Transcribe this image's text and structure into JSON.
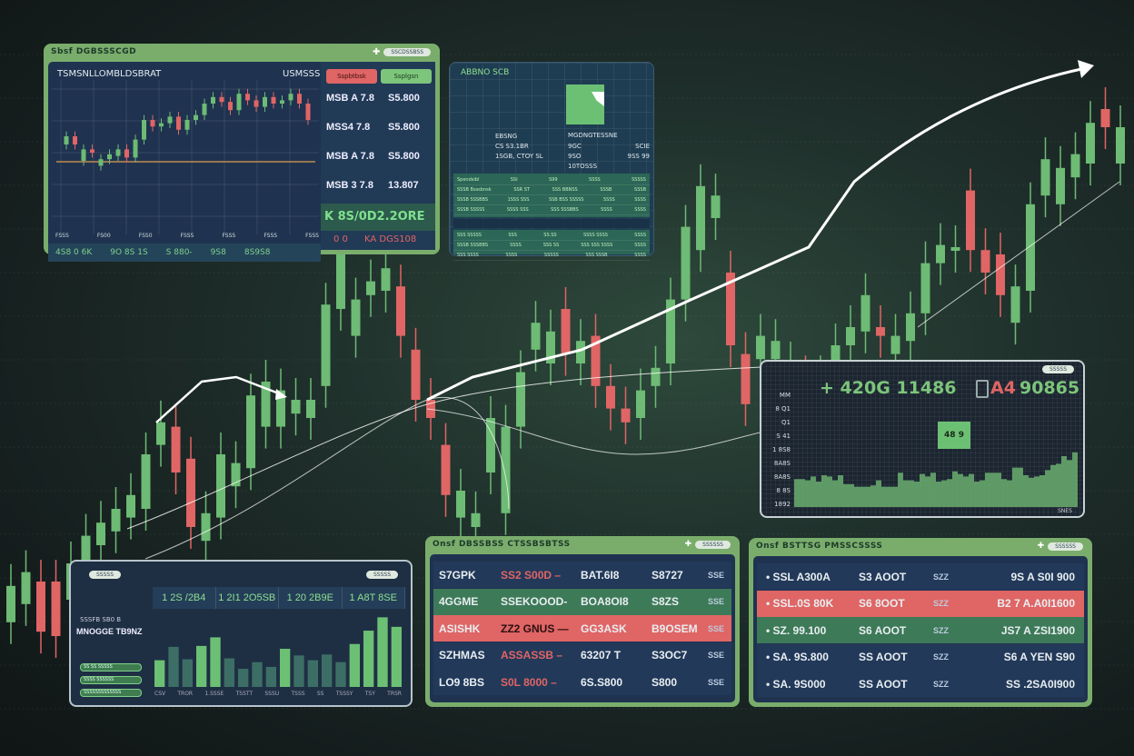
{
  "colors": {
    "up": "#6dbb74",
    "down": "#e06565",
    "panel": "#1f3350",
    "frame": "#7aad6c",
    "arrow": "#ffffff"
  },
  "market_chart": {
    "type": "candlestick",
    "candles": [
      [
        14.4,
        19.4
      ],
      [
        16.9,
        21.3
      ],
      [
        20,
        13.1
      ],
      [
        20,
        12.5
      ],
      [
        17.5,
        22.5
      ],
      [
        18.8,
        26.3
      ],
      [
        25,
        28.1
      ],
      [
        26.9,
        30
      ],
      [
        28.8,
        31.9
      ],
      [
        30,
        37.5
      ],
      [
        38.8,
        41.9
      ],
      [
        41.3,
        35
      ],
      [
        36.9,
        27.5
      ],
      [
        25.6,
        29.4
      ],
      [
        28.8,
        37.5
      ],
      [
        33.1,
        36.3
      ],
      [
        35.6,
        45.6
      ],
      [
        41.3,
        47.5
      ],
      [
        41.3,
        46.3
      ],
      [
        43.1,
        45
      ],
      [
        42.5,
        45
      ],
      [
        46.9,
        58.1
      ],
      [
        57.5,
        65.6
      ],
      [
        53.8,
        58.8
      ],
      [
        59.4,
        61.3
      ],
      [
        60,
        63.1
      ],
      [
        60.6,
        53.8
      ],
      [
        51.9,
        45
      ],
      [
        45,
        42.5
      ],
      [
        38.8,
        31.9
      ],
      [
        28.8,
        32.5
      ],
      [
        27.5,
        29.4
      ],
      [
        35,
        42.5
      ],
      [
        29.4,
        41.3
      ],
      [
        41.3,
        48.8
      ],
      [
        51.9,
        55.6
      ],
      [
        50,
        54.4
      ],
      [
        57.5,
        51.3
      ],
      [
        50,
        53.1
      ],
      [
        53.8,
        46.9
      ],
      [
        46.9,
        43.8
      ],
      [
        43.8,
        41.9
      ],
      [
        42.5,
        46.3
      ],
      [
        46.9,
        49.4
      ],
      [
        50,
        58.8
      ],
      [
        58.8,
        68.8
      ],
      [
        65.6,
        74.4
      ],
      [
        70,
        73.1
      ],
      [
        62.5,
        52.5
      ],
      [
        51.3,
        44.4
      ],
      [
        50.6,
        53.8
      ],
      [
        50.6,
        53.1
      ],
      [
        45,
        50
      ],
      [
        48.1,
        45
      ],
      [
        42.5,
        48.1
      ],
      [
        50,
        52.5
      ],
      [
        52.5,
        55
      ],
      [
        54.4,
        59.4
      ],
      [
        55,
        53.8
      ],
      [
        51.3,
        53.8
      ],
      [
        53.1,
        56.9
      ],
      [
        56.9,
        63.8
      ],
      [
        63.8,
        66.3
      ],
      [
        65.5,
        66
      ],
      [
        73.8,
        65.6
      ],
      [
        65.6,
        62.5
      ],
      [
        65,
        59.4
      ],
      [
        55.6,
        60.6
      ],
      [
        60,
        71.9
      ],
      [
        73.1,
        78.1
      ],
      [
        71.9,
        76.9
      ],
      [
        75.6,
        78.8
      ],
      [
        77.5,
        83.1
      ],
      [
        85,
        82.5
      ],
      [
        77.5,
        82.5
      ]
    ]
  },
  "panel_main": {
    "header": "Sbsf DGBSSSCGD",
    "header_pill": "SSCDSSBSS",
    "chart_title": "TSMSNLLOMBLDSBRAT",
    "chart_tag": "USMSSS",
    "sell_label": "Sspbtbsk",
    "buy_label": "Ssplgsn",
    "quotes": [
      {
        "name": "MSB A 7.8",
        "price": "S5.800"
      },
      {
        "name": "MSS4 7.8",
        "price": "S5.800"
      },
      {
        "name": "MSB A 7.8",
        "price": "S5.800"
      },
      {
        "name": "MSB 3 7.8",
        "price": "13.807"
      }
    ],
    "highlight": "K 8S/0D2.2ORE",
    "change_a": "0 0",
    "change_b": "KA DGS108",
    "axis_labels": [
      "FSSS",
      "FS00",
      "FSS0",
      "FSSS",
      "FSSS",
      "FSSS",
      "FSSS"
    ],
    "footer": [
      "4S8 0 6K",
      "9O 8S 1S",
      "S 880-",
      "9S8",
      "8S9S8"
    ],
    "mini_candles": [
      [
        55,
        60
      ],
      [
        60,
        55
      ],
      [
        45,
        52
      ],
      [
        52,
        50
      ],
      [
        42,
        46
      ],
      [
        46,
        49
      ],
      [
        48,
        52
      ],
      [
        52,
        47
      ],
      [
        47,
        58
      ],
      [
        58,
        70
      ],
      [
        70,
        66
      ],
      [
        66,
        68
      ],
      [
        68,
        72
      ],
      [
        72,
        64
      ],
      [
        64,
        70
      ],
      [
        70,
        73
      ],
      [
        73,
        80
      ],
      [
        80,
        84
      ],
      [
        84,
        81
      ],
      [
        81,
        76
      ],
      [
        76,
        86
      ],
      [
        86,
        82
      ],
      [
        82,
        78
      ],
      [
        78,
        84
      ],
      [
        84,
        80
      ],
      [
        80,
        82
      ],
      [
        82,
        86
      ],
      [
        86,
        80
      ],
      [
        80,
        70
      ]
    ]
  },
  "panel_info": {
    "title": "ABBNO SCB",
    "labels": [
      "EBSNG",
      "CS S3.1BR",
      "1SGB, CTOY SL"
    ],
    "sub_header": "MGDNGTESSNE",
    "values": [
      [
        "9GC",
        "SCIE"
      ],
      [
        "9SO",
        "9SS 99"
      ],
      [
        "10TOSSS",
        ""
      ]
    ],
    "table": [
      [
        "Spendsibl",
        "SSI",
        "S99",
        "SSSS",
        "SSSSS"
      ],
      [
        "SSSB Bsssbnsk",
        "SSR ST",
        "SSS BBNSS",
        "SSSB",
        "SSSB"
      ],
      [
        "SSSB SSSBBS",
        "1SSS SSS",
        "SSB BSS SSSSS",
        "SSSS",
        "SSSS"
      ],
      [
        "SSSB SSSSS",
        "SSSS SSS",
        "SSS SSSBBS",
        "SSSS",
        "SSSS"
      ]
    ],
    "table2": [
      [
        "SSS SSSSS",
        "SSS",
        "SS.SS",
        "SSSS SSSS",
        "SSSS"
      ],
      [
        "SSSB SSSBBS",
        "SSSS",
        "SSS SS",
        "SSS SSS SSSS",
        "SSSS"
      ],
      [
        "SSS SSSS",
        "SSSS",
        "SSSSS",
        "SSS SSSB",
        "SSSS"
      ]
    ]
  },
  "panel_ticker": {
    "pill": "SSSSS",
    "value_green": "+ 420G 11486",
    "value_red": "A4",
    "value_green2": "90865",
    "badge": "48 9",
    "y_labels": [
      "MM",
      "8 Q1",
      "Q1",
      "S 41",
      "1 8S8",
      "8A8S",
      "8A8S",
      "8 8S",
      "1892"
    ],
    "x_label": "SNES",
    "area": [
      22,
      22,
      21,
      24,
      20,
      25,
      24,
      21,
      25,
      18,
      18,
      16,
      16,
      16,
      17,
      21,
      16,
      16,
      16,
      27,
      21,
      21,
      20,
      26,
      24,
      27,
      20,
      21,
      22,
      28,
      26,
      24,
      26,
      20,
      21,
      27,
      27,
      27,
      22,
      21,
      31,
      31,
      25,
      23,
      24,
      25,
      29,
      33,
      34,
      40,
      37,
      43
    ]
  },
  "panel_bars": {
    "pill_left": "SSSSS",
    "pill_right": "SSSSS",
    "stats": [
      "1 2S /2B4",
      "1 2I1 2O5SB",
      "1 20 2B9E",
      "1 A8T 8SE"
    ],
    "label_small": "SSSFB  SB0 B",
    "label_big": "MNOGGE TB9NZ",
    "chips": [
      "SS SS SSSSS",
      "SSSS SSSSSS",
      "SSSSSSSSSSSSS"
    ],
    "bars": [
      28,
      42,
      29,
      43,
      52,
      30,
      19,
      26,
      21,
      40,
      33,
      28,
      34,
      26,
      45,
      59,
      73,
      63
    ],
    "x_labels": [
      "CSV",
      "TROR",
      "1.SSSE",
      "TSSTT",
      "SSSU",
      "TSSS",
      "SS",
      "TSSSY",
      "TSY",
      "TRSR"
    ]
  },
  "panel_orders_a": {
    "header": "Onsf DBSSBSS CTSSBSBTSS",
    "pill": "SSSSSS",
    "rows": [
      {
        "c": [
          "S7GPK",
          "SS2 S00D –",
          "BAT.6I8",
          "S8727",
          "SSE"
        ],
        "style": "navy"
      },
      {
        "c": [
          "4GGME",
          "SSEKOOOD-",
          "BOA8OI8",
          "S8ZS",
          "SSE"
        ],
        "style": "green"
      },
      {
        "c": [
          "ASISHK",
          "ZZ2 GNUS —",
          "GG3ASK",
          "B9OSEM",
          "SSE"
        ],
        "style": "red"
      },
      {
        "c": [
          "SZHMAS",
          "ASSASSB –",
          "63207 T",
          "S3OC7",
          "SSE"
        ],
        "style": "navy"
      },
      {
        "c": [
          "LO9 8BS",
          "S0L 8000 –",
          "6S.S800",
          "S800",
          "SSE"
        ],
        "style": "navy"
      }
    ]
  },
  "panel_orders_b": {
    "header": "Onsf BSTTSG PMSSCSSSS",
    "pill": "SSSSSS",
    "rows": [
      {
        "c": [
          "• SSL A300A",
          "S3 AOOT",
          "SZZ",
          "9S A S0I 900"
        ],
        "style": "navy"
      },
      {
        "c": [
          "• SSL.0S 80K",
          "S6 8OOT",
          "SZZ",
          "B2 7 A.A0I1600"
        ],
        "style": "red"
      },
      {
        "c": [
          "• SZ. 99.100",
          "S6 AOOT",
          "SZZ",
          "JS7 A ZSI1900"
        ],
        "style": "green"
      },
      {
        "c": [
          "• SA. 9S.800",
          "SS AOOT",
          "SZZ",
          "S6 A YEN S90"
        ],
        "style": "navy"
      },
      {
        "c": [
          "• SA. 9S000",
          "SS AOOT",
          "SZZ",
          "SS .2SA0I900"
        ],
        "style": "navy"
      }
    ]
  }
}
